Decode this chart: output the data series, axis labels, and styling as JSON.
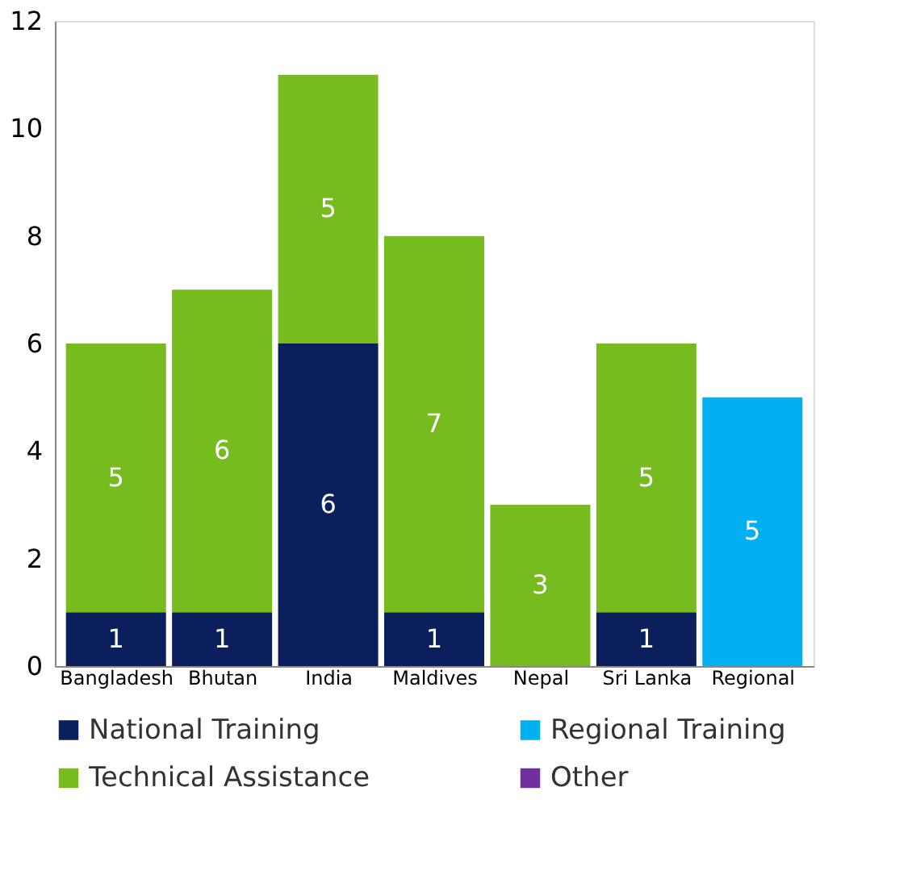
{
  "chart_data": {
    "type": "bar",
    "stacked": true,
    "categories": [
      "Bangladesh",
      "Bhutan",
      "India",
      "Maldives",
      "Nepal",
      "Sri Lanka",
      "Regional"
    ],
    "series": [
      {
        "name": "National Training",
        "color": "#0a1f5c",
        "values": [
          1,
          1,
          6,
          1,
          null,
          1,
          null
        ]
      },
      {
        "name": "Regional Training",
        "color": "#00b0f0",
        "values": [
          null,
          null,
          null,
          null,
          null,
          null,
          5
        ]
      },
      {
        "name": "Technical Assistance",
        "color": "#77bc1f",
        "values": [
          5,
          6,
          5,
          7,
          3,
          5,
          null
        ]
      },
      {
        "name": "Other",
        "color": "#7030a0",
        "values": [
          null,
          null,
          null,
          null,
          null,
          null,
          null
        ]
      }
    ],
    "ylim": [
      0,
      12
    ],
    "yticks": [
      0,
      2,
      4,
      6,
      8,
      10,
      12
    ],
    "grid": false,
    "legend": "bottom",
    "data_labels": true
  }
}
